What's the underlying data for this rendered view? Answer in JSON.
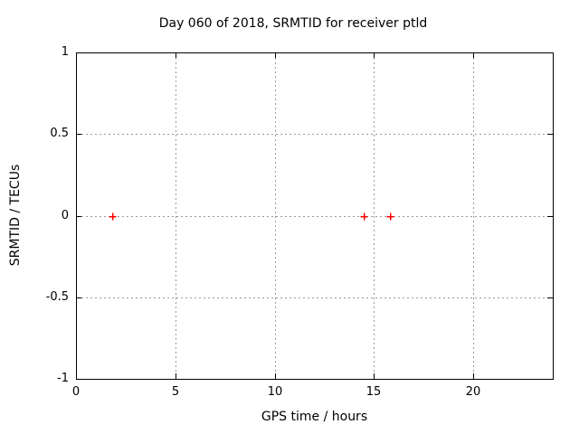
{
  "chart_data": {
    "type": "scatter",
    "title": "Day 060 of 2018, SRMTID for receiver ptld",
    "xlabel": "GPS time / hours",
    "ylabel": "SRMTID / TECUs",
    "xlim": [
      0,
      24
    ],
    "ylim": [
      -1,
      1
    ],
    "xticks": [
      0,
      5,
      10,
      15,
      20
    ],
    "xtick_labels": [
      "0",
      "5",
      "10",
      "15",
      "20"
    ],
    "yticks": [
      -1,
      -0.5,
      0,
      0.5,
      1
    ],
    "ytick_labels": [
      "-1",
      "-0.5",
      "0",
      "0.5",
      "1"
    ],
    "grid": true,
    "grid_style": "dotted",
    "legend_position": "none",
    "series": [
      {
        "marker": "plus",
        "color": "#ff0000",
        "points": [
          {
            "x": 1.8,
            "y": 0
          },
          {
            "x": 14.5,
            "y": 0
          },
          {
            "x": 15.8,
            "y": 0
          }
        ]
      }
    ],
    "colors": {
      "background": "#ffffff",
      "axis": "#000000",
      "grid": "#999999",
      "text": "#000000",
      "marker": "#ff0000"
    }
  }
}
